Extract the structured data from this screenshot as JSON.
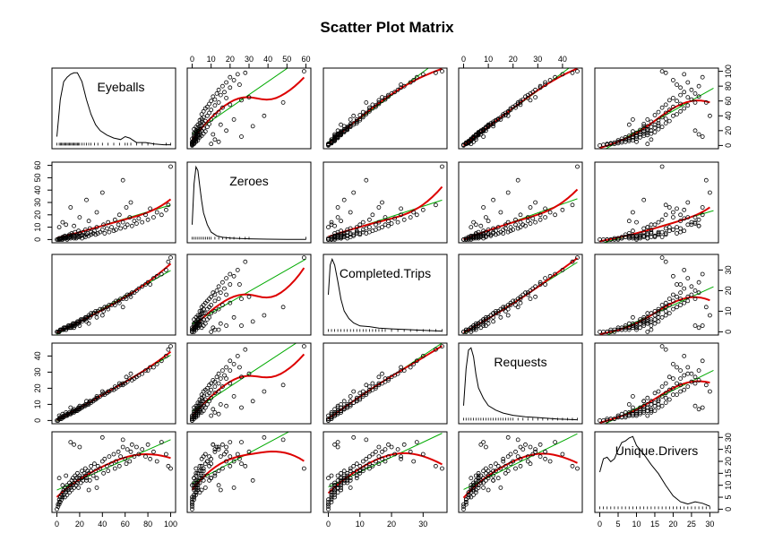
{
  "chart_data": {
    "type": "scatter",
    "title": "Scatter Plot Matrix",
    "variables": [
      "Eyeballs",
      "Zeroes",
      "Completed.Trips",
      "Requests",
      "Unique.Drivers"
    ],
    "ranges": {
      "Eyeballs": [
        0,
        100
      ],
      "Zeroes": [
        0,
        60
      ],
      "Completed.Trips": [
        0,
        36
      ],
      "Requests": [
        0,
        46
      ],
      "Unique.Drivers": [
        0,
        31
      ]
    },
    "ticks": {
      "Eyeballs": [
        0,
        20,
        40,
        60,
        80,
        100
      ],
      "Zeroes": [
        0,
        10,
        20,
        30,
        40,
        50,
        60
      ],
      "Completed.Trips": [
        0,
        10,
        20,
        30
      ],
      "Requests": [
        0,
        10,
        20,
        30,
        40
      ],
      "Unique.Drivers": [
        0,
        5,
        10,
        15,
        20,
        25,
        30
      ]
    },
    "axis_sides": {
      "bottom": [
        "Eyeballs",
        "Completed.Trips",
        "Unique.Drivers"
      ],
      "top": [
        "Zeroes",
        "Requests"
      ],
      "left": [
        "Zeroes",
        "Requests"
      ],
      "right": [
        "Eyeballs",
        "Completed.Trips",
        "Unique.Drivers"
      ]
    },
    "colors": {
      "points": "#000000",
      "smooth": "#dd0000",
      "linear": "#00aa00",
      "density": "#000000"
    },
    "density": {
      "Eyeballs": {
        "x": [
          0,
          3,
          6,
          9,
          12,
          15,
          18,
          22,
          26,
          30,
          34,
          38,
          44,
          50,
          56,
          60,
          64,
          70,
          78,
          86,
          94,
          100
        ],
        "y": [
          0.12,
          0.62,
          0.86,
          0.92,
          0.96,
          0.98,
          0.98,
          0.86,
          0.62,
          0.42,
          0.28,
          0.2,
          0.14,
          0.1,
          0.08,
          0.12,
          0.1,
          0.04,
          0.04,
          0.02,
          0.01,
          0.01
        ]
      },
      "Zeroes": {
        "x": [
          0,
          1,
          2,
          3,
          4,
          5,
          6,
          8,
          10,
          13,
          16,
          20,
          25,
          30,
          40,
          50,
          60
        ],
        "y": [
          0.2,
          0.75,
          0.98,
          0.93,
          0.72,
          0.52,
          0.36,
          0.2,
          0.1,
          0.05,
          0.03,
          0.02,
          0.015,
          0.01,
          0.005,
          0.003,
          0.002
        ]
      },
      "Completed.Trips": {
        "x": [
          0,
          0.6,
          1.2,
          2,
          3,
          4,
          5,
          6.5,
          8,
          10,
          13,
          16,
          20,
          25,
          30,
          36
        ],
        "y": [
          0.5,
          0.9,
          0.98,
          0.9,
          0.68,
          0.44,
          0.28,
          0.18,
          0.12,
          0.08,
          0.07,
          0.05,
          0.04,
          0.03,
          0.02,
          0.01
        ]
      },
      "Requests": {
        "x": [
          0,
          1,
          2,
          3,
          4,
          5,
          6,
          8,
          10,
          13,
          16,
          20,
          25,
          30,
          38,
          46
        ],
        "y": [
          0.2,
          0.7,
          0.95,
          0.98,
          0.86,
          0.62,
          0.44,
          0.3,
          0.2,
          0.14,
          0.1,
          0.07,
          0.05,
          0.04,
          0.02,
          0.01
        ]
      },
      "Unique.Drivers": {
        "x": [
          0,
          1,
          2,
          3,
          4,
          5,
          6,
          7,
          8,
          9,
          10,
          12,
          14,
          16,
          18,
          20,
          22,
          24,
          26,
          28,
          30
        ],
        "y": [
          0.5,
          0.68,
          0.7,
          0.64,
          0.68,
          0.8,
          0.9,
          0.92,
          0.96,
          0.98,
          0.86,
          0.74,
          0.6,
          0.48,
          0.32,
          0.18,
          0.1,
          0.07,
          0.1,
          0.08,
          0.04
        ]
      }
    },
    "rug": {
      "Eyeballs": [
        0,
        2,
        3,
        4,
        5,
        6,
        7,
        8,
        9,
        10,
        11,
        12,
        13,
        14,
        15,
        16,
        17,
        18,
        19,
        20,
        22,
        24,
        26,
        28,
        30,
        33,
        36,
        40,
        45,
        50,
        55,
        60,
        62,
        65,
        70,
        75,
        80,
        85,
        96,
        100
      ],
      "Zeroes": [
        0,
        1,
        2,
        3,
        4,
        5,
        6,
        7,
        8,
        9,
        10,
        12,
        14,
        16,
        18,
        20,
        22,
        25,
        28,
        30,
        60
      ],
      "Completed.Trips": [
        0,
        1,
        2,
        3,
        4,
        5,
        6,
        7,
        8,
        9,
        10,
        11,
        12,
        13,
        14,
        15,
        16,
        17,
        18,
        20,
        22,
        24,
        26,
        28,
        30,
        32,
        34,
        36
      ],
      "Requests": [
        0,
        1,
        2,
        3,
        4,
        5,
        6,
        7,
        8,
        9,
        10,
        11,
        12,
        13,
        14,
        15,
        16,
        17,
        18,
        19,
        20,
        22,
        24,
        26,
        28,
        30,
        32,
        34,
        36,
        38,
        40,
        42,
        44,
        46
      ],
      "Unique.Drivers": [
        0,
        1,
        2,
        3,
        4,
        5,
        6,
        7,
        8,
        9,
        10,
        11,
        12,
        13,
        14,
        15,
        16,
        17,
        18,
        19,
        20,
        21,
        22,
        23,
        24,
        25,
        26,
        27,
        28,
        29,
        30
      ]
    },
    "observations": [
      [
        0,
        0,
        0,
        0,
        0
      ],
      [
        1,
        0,
        0,
        0,
        1
      ],
      [
        1,
        0,
        0,
        0,
        2
      ],
      [
        2,
        0,
        0,
        1,
        3
      ],
      [
        2,
        0,
        0,
        1,
        2
      ],
      [
        2,
        1,
        0,
        1,
        4
      ],
      [
        3,
        0,
        1,
        1,
        3
      ],
      [
        3,
        1,
        1,
        2,
        5
      ],
      [
        4,
        0,
        1,
        1,
        4
      ],
      [
        4,
        1,
        1,
        2,
        6
      ],
      [
        5,
        0,
        1,
        2,
        5
      ],
      [
        5,
        2,
        1,
        2,
        7
      ],
      [
        6,
        1,
        1,
        2,
        6
      ],
      [
        6,
        2,
        2,
        3,
        8
      ],
      [
        7,
        1,
        2,
        3,
        5
      ],
      [
        7,
        3,
        2,
        3,
        9
      ],
      [
        8,
        2,
        2,
        3,
        7
      ],
      [
        8,
        1,
        1,
        3,
        8
      ],
      [
        9,
        0,
        2,
        3,
        10
      ],
      [
        9,
        2,
        2,
        4,
        6
      ],
      [
        10,
        3,
        2,
        4,
        8
      ],
      [
        10,
        1,
        3,
        4,
        9
      ],
      [
        11,
        2,
        2,
        4,
        11
      ],
      [
        11,
        4,
        3,
        5,
        7
      ],
      [
        12,
        2,
        3,
        4,
        9
      ],
      [
        12,
        1,
        2,
        4,
        10
      ],
      [
        13,
        3,
        3,
        5,
        12
      ],
      [
        13,
        5,
        2,
        5,
        8
      ],
      [
        14,
        2,
        3,
        5,
        10
      ],
      [
        14,
        4,
        4,
        6,
        13
      ],
      [
        15,
        1,
        4,
        5,
        11
      ],
      [
        15,
        3,
        3,
        6,
        9
      ],
      [
        16,
        2,
        4,
        6,
        12
      ],
      [
        16,
        6,
        3,
        6,
        14
      ],
      [
        17,
        3,
        4,
        6,
        10
      ],
      [
        17,
        1,
        4,
        6,
        13
      ],
      [
        18,
        4,
        5,
        7,
        11
      ],
      [
        18,
        2,
        4,
        6,
        15
      ],
      [
        19,
        3,
        5,
        7,
        12
      ],
      [
        19,
        7,
        4,
        8,
        9
      ],
      [
        20,
        2,
        5,
        7,
        14
      ],
      [
        20,
        5,
        5,
        8,
        13
      ],
      [
        21,
        3,
        6,
        8,
        11
      ],
      [
        22,
        4,
        5,
        8,
        16
      ],
      [
        22,
        1,
        6,
        8,
        13
      ],
      [
        23,
        6,
        6,
        9,
        12
      ],
      [
        24,
        3,
        6,
        9,
        15
      ],
      [
        25,
        8,
        6,
        10,
        14
      ],
      [
        25,
        2,
        7,
        9,
        17
      ],
      [
        26,
        4,
        7,
        10,
        13
      ],
      [
        27,
        5,
        7,
        10,
        16
      ],
      [
        28,
        3,
        8,
        11,
        15
      ],
      [
        29,
        9,
        7,
        12,
        12
      ],
      [
        30,
        4,
        8,
        11,
        18
      ],
      [
        30,
        6,
        9,
        12,
        16
      ],
      [
        32,
        5,
        9,
        12,
        14
      ],
      [
        33,
        7,
        9,
        13,
        19
      ],
      [
        34,
        4,
        10,
        13,
        16
      ],
      [
        35,
        10,
        9,
        14,
        13
      ],
      [
        36,
        5,
        10,
        14,
        18
      ],
      [
        38,
        6,
        11,
        15,
        17
      ],
      [
        40,
        8,
        11,
        16,
        20
      ],
      [
        41,
        12,
        10,
        17,
        15
      ],
      [
        42,
        5,
        12,
        16,
        21
      ],
      [
        44,
        9,
        12,
        17,
        18
      ],
      [
        45,
        14,
        11,
        18,
        16
      ],
      [
        46,
        6,
        13,
        18,
        22
      ],
      [
        48,
        10,
        13,
        19,
        19
      ],
      [
        50,
        7,
        14,
        19,
        23
      ],
      [
        51,
        16,
        13,
        21,
        17
      ],
      [
        52,
        8,
        15,
        20,
        20
      ],
      [
        54,
        12,
        15,
        21,
        24
      ],
      [
        55,
        20,
        14,
        23,
        18
      ],
      [
        56,
        9,
        16,
        22,
        22
      ],
      [
        58,
        14,
        16,
        23,
        26
      ],
      [
        60,
        10,
        17,
        23,
        21
      ],
      [
        61,
        26,
        16,
        27,
        19
      ],
      [
        62,
        12,
        18,
        24,
        25
      ],
      [
        64,
        18,
        18,
        26,
        20
      ],
      [
        65,
        30,
        17,
        29,
        24
      ],
      [
        66,
        11,
        19,
        25,
        27
      ],
      [
        68,
        15,
        19,
        26,
        22
      ],
      [
        70,
        13,
        20,
        27,
        26
      ],
      [
        72,
        17,
        21,
        28,
        23
      ],
      [
        75,
        14,
        22,
        29,
        25
      ],
      [
        78,
        20,
        23,
        31,
        22
      ],
      [
        80,
        16,
        24,
        31,
        27
      ],
      [
        82,
        25,
        23,
        33,
        21
      ],
      [
        85,
        18,
        26,
        33,
        24
      ],
      [
        88,
        22,
        27,
        35,
        20
      ],
      [
        92,
        20,
        28,
        37,
        28
      ],
      [
        96,
        24,
        30,
        40,
        23
      ],
      [
        98,
        28,
        34,
        44,
        18
      ],
      [
        100,
        59,
        36,
        46,
        17
      ],
      [
        58,
        48,
        12,
        22,
        29
      ],
      [
        40,
        38,
        8,
        18,
        30
      ],
      [
        26,
        32,
        5,
        12,
        12
      ],
      [
        12,
        26,
        3,
        8,
        28
      ],
      [
        35,
        22,
        7,
        15,
        9
      ],
      [
        20,
        18,
        3,
        9,
        26
      ],
      [
        2,
        10,
        0,
        3,
        13
      ],
      [
        5,
        14,
        1,
        4,
        10
      ],
      [
        8,
        12,
        1,
        5,
        14
      ],
      [
        15,
        11,
        2,
        7,
        27
      ],
      [
        28,
        15,
        4,
        10,
        8
      ]
    ]
  }
}
